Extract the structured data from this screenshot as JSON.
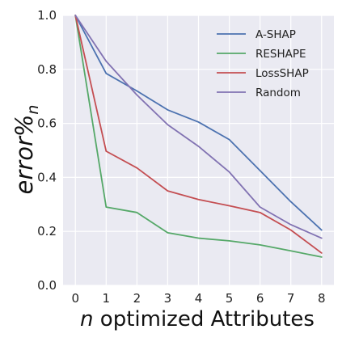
{
  "chart_data": {
    "type": "line",
    "title": "",
    "xlabel_prefix": "n",
    "xlabel_rest": " optimized Attributes",
    "ylabel_main": "error%",
    "ylabel_sub": "n",
    "x": [
      0,
      1,
      2,
      3,
      4,
      5,
      6,
      7,
      8
    ],
    "xticks": [
      "0",
      "1",
      "2",
      "3",
      "4",
      "5",
      "6",
      "7",
      "8"
    ],
    "yticks": [
      "0.0",
      "0.2",
      "0.4",
      "0.6",
      "0.8",
      "1.0"
    ],
    "xlim": [
      -0.4,
      8.4
    ],
    "ylim": [
      0.0,
      1.0
    ],
    "grid": true,
    "legend_position": "top-right",
    "background": "#EAEAF2",
    "series": [
      {
        "name": "A-SHAP",
        "color": "#4C72B0",
        "values": [
          1.0,
          0.785,
          0.72,
          0.65,
          0.605,
          0.54,
          0.425,
          0.31,
          0.205
        ]
      },
      {
        "name": "RESHAPE",
        "color": "#55A868",
        "values": [
          1.0,
          0.29,
          0.27,
          0.195,
          0.175,
          0.165,
          0.15,
          0.128,
          0.105
        ]
      },
      {
        "name": "LossSHAP",
        "color": "#C44E52",
        "values": [
          1.0,
          0.497,
          0.435,
          0.35,
          0.318,
          0.295,
          0.27,
          0.205,
          0.12
        ]
      },
      {
        "name": "Random",
        "color": "#8172B2",
        "values": [
          1.0,
          0.83,
          0.705,
          0.595,
          0.515,
          0.42,
          0.29,
          0.225,
          0.175
        ]
      }
    ]
  }
}
